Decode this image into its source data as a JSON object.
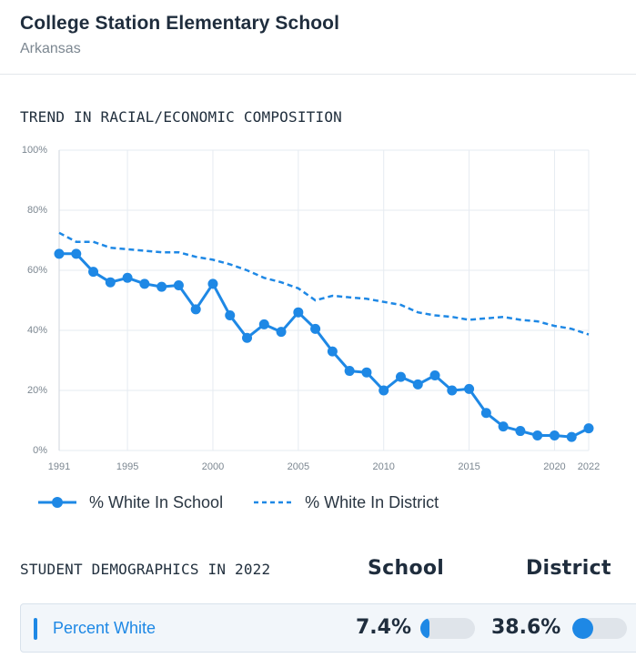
{
  "header": {
    "school_name": "College Station Elementary School",
    "state": "Arkansas"
  },
  "trend": {
    "title": "TREND IN RACIAL/ECONOMIC COMPOSITION"
  },
  "colors": {
    "series": "#1e88e5",
    "grid": "#e6ebf1",
    "axis_text": "#7c8791"
  },
  "chart_data": {
    "type": "line",
    "title": "TREND IN RACIAL/ECONOMIC COMPOSITION",
    "xlabel": "",
    "ylabel": "",
    "xlim": [
      1991,
      2022
    ],
    "ylim": [
      0,
      100
    ],
    "x_ticks": [
      1991,
      1995,
      2000,
      2005,
      2010,
      2015,
      2020,
      2022
    ],
    "y_ticks": [
      0,
      20,
      40,
      60,
      80,
      100
    ],
    "y_tick_labels": [
      "0%",
      "20%",
      "40%",
      "60%",
      "80%",
      "100%"
    ],
    "legend": "bottom-left",
    "series": [
      {
        "name": "% White In School",
        "style": "solid-markers",
        "x": [
          1991,
          1992,
          1993,
          1994,
          1995,
          1996,
          1997,
          1998,
          1999,
          2000,
          2001,
          2002,
          2003,
          2004,
          2005,
          2006,
          2007,
          2008,
          2009,
          2010,
          2011,
          2012,
          2013,
          2014,
          2015,
          2016,
          2017,
          2018,
          2019,
          2020,
          2021,
          2022
        ],
        "values": [
          65.5,
          65.5,
          59.5,
          56.0,
          57.5,
          55.5,
          54.5,
          55.0,
          47.0,
          55.5,
          45.0,
          37.5,
          42.0,
          39.5,
          46.0,
          40.5,
          33.0,
          26.5,
          26.0,
          20.0,
          24.5,
          22.0,
          25.0,
          20.0,
          20.5,
          12.5,
          8.0,
          6.5,
          5.0,
          5.0,
          4.5,
          7.4
        ]
      },
      {
        "name": "% White In District",
        "style": "dashed",
        "x": [
          1991,
          1992,
          1993,
          1994,
          1995,
          1996,
          1997,
          1998,
          1999,
          2000,
          2001,
          2002,
          2003,
          2004,
          2005,
          2006,
          2007,
          2008,
          2009,
          2010,
          2011,
          2012,
          2013,
          2014,
          2015,
          2016,
          2017,
          2018,
          2019,
          2020,
          2021,
          2022
        ],
        "values": [
          72.5,
          69.5,
          69.5,
          67.5,
          67.0,
          66.5,
          66.0,
          66.0,
          64.5,
          63.5,
          62.0,
          60.0,
          57.5,
          56.0,
          54.0,
          50.0,
          51.5,
          51.0,
          50.5,
          49.5,
          48.5,
          46.0,
          45.0,
          44.5,
          43.5,
          44.0,
          44.5,
          43.5,
          43.0,
          41.5,
          40.5,
          38.6
        ]
      }
    ]
  },
  "legend": {
    "school_label": "% White In School",
    "district_label": "% White In District"
  },
  "demographics": {
    "title": "STUDENT DEMOGRAPHICS IN 2022",
    "col_school": "School",
    "col_district": "District",
    "rows": [
      {
        "label": "Percent White",
        "school_value": "7.4%",
        "district_value": "38.6%",
        "school_fraction": 0.074,
        "district_fraction": 0.386
      }
    ]
  }
}
